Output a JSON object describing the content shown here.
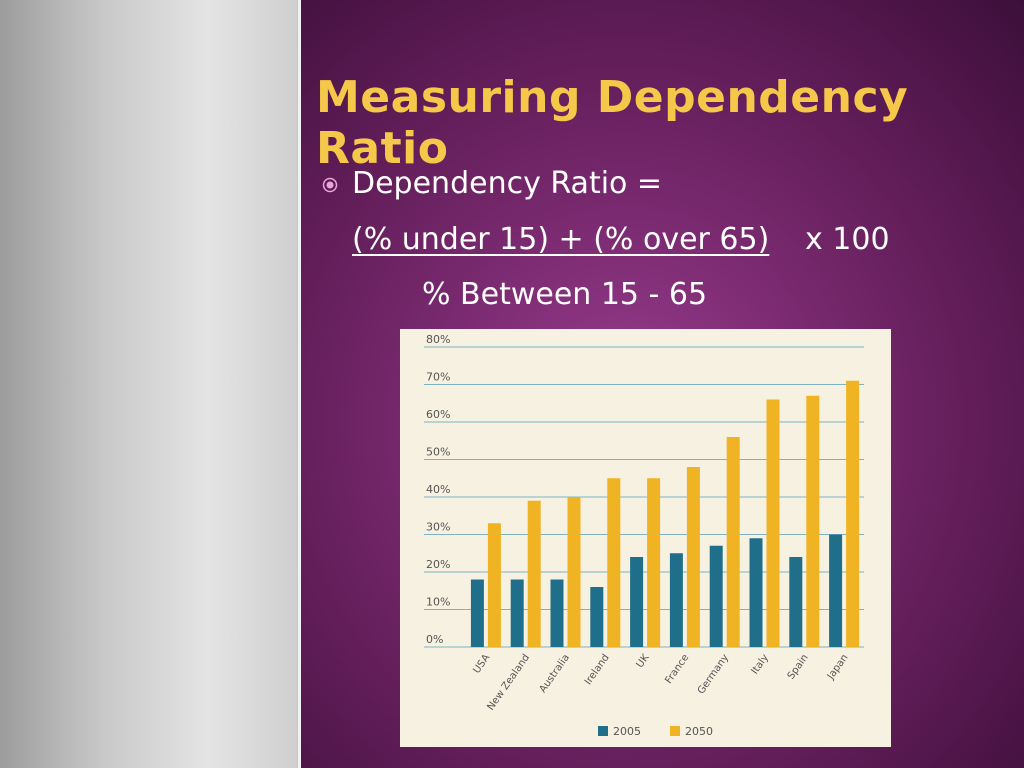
{
  "slide": {
    "title": "Measuring Dependency Ratio",
    "bullet": "Dependency Ratio =",
    "numerator": "(% under 15) + (% over 65)",
    "multiplier": "x 100",
    "denominator": "% Between 15 - 65",
    "bullet_icon": "circle-bullet-icon",
    "colors": {
      "title": "#f6c84a",
      "text": "#ffffff",
      "background": "#6e2566"
    }
  },
  "chart_data": {
    "type": "bar",
    "categories": [
      "USA",
      "New Zealand",
      "Australia",
      "Ireland",
      "UK",
      "France",
      "Germany",
      "Italy",
      "Spain",
      "Japan"
    ],
    "series": [
      {
        "name": "2005",
        "color": "#1f6f8b",
        "values": [
          18,
          18,
          18,
          16,
          24,
          25,
          27,
          29,
          24,
          30
        ]
      },
      {
        "name": "2050",
        "color": "#f0b323",
        "values": [
          33,
          39,
          40,
          45,
          45,
          48,
          56,
          66,
          67,
          71
        ]
      }
    ],
    "yticks": [
      "0%",
      "10%",
      "20%",
      "30%",
      "40%",
      "50%",
      "60%",
      "70%",
      "80%"
    ],
    "ylim": [
      0,
      80
    ],
    "grid": true,
    "legend": "bottom"
  }
}
